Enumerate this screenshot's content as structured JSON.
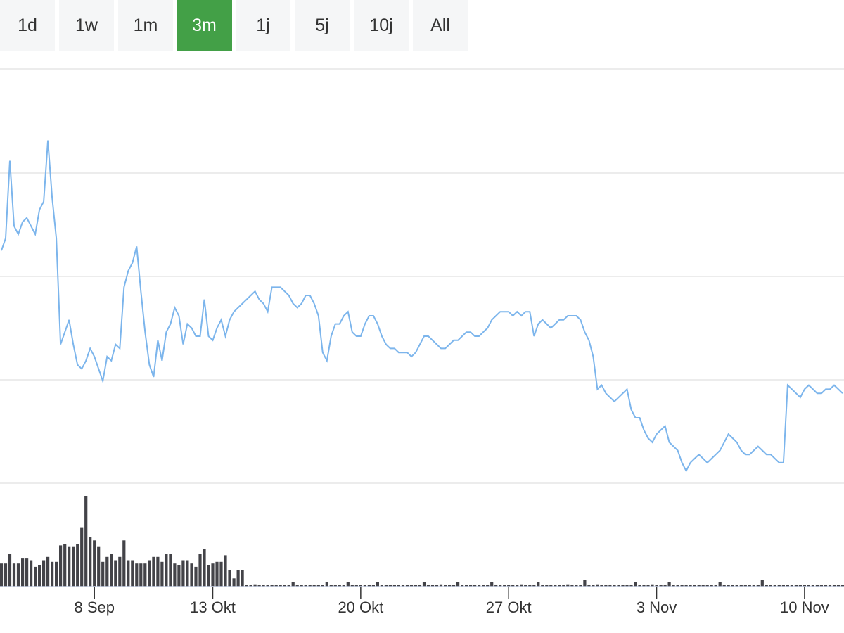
{
  "range_selector": {
    "buttons": [
      {
        "label": "1d",
        "active": false
      },
      {
        "label": "1w",
        "active": false
      },
      {
        "label": "1m",
        "active": false
      },
      {
        "label": "3m",
        "active": true
      },
      {
        "label": "1j",
        "active": false
      },
      {
        "label": "5j",
        "active": false
      },
      {
        "label": "10j",
        "active": false
      },
      {
        "label": "All",
        "active": false
      }
    ],
    "active_color": "#43a047"
  },
  "chart_data": {
    "type": "line",
    "line_color": "#7cb5ec",
    "volume_color": "#434348",
    "grid": true,
    "x_ticks": [
      {
        "label": "8 Sep",
        "index": 22
      },
      {
        "label": "13 Okt",
        "index": 50
      },
      {
        "label": "20 Okt",
        "index": 85
      },
      {
        "label": "27 Okt",
        "index": 120
      },
      {
        "label": "3 Nov",
        "index": 155
      },
      {
        "label": "10 Nov",
        "index": 190
      }
    ],
    "x_count": 200,
    "y_range": [
      0,
      100
    ],
    "price": [
      [
        0,
        61
      ],
      [
        1,
        64
      ],
      [
        2,
        83
      ],
      [
        3,
        67
      ],
      [
        4,
        65
      ],
      [
        5,
        68
      ],
      [
        6,
        69
      ],
      [
        7,
        67
      ],
      [
        8,
        65
      ],
      [
        9,
        71
      ],
      [
        10,
        73
      ],
      [
        11,
        88
      ],
      [
        12,
        74
      ],
      [
        13,
        64
      ],
      [
        14,
        38
      ],
      [
        15,
        41
      ],
      [
        16,
        44
      ],
      [
        17,
        38
      ],
      [
        18,
        33
      ],
      [
        19,
        32
      ],
      [
        20,
        34
      ],
      [
        21,
        37
      ],
      [
        22,
        35
      ],
      [
        23,
        32
      ],
      [
        24,
        29
      ],
      [
        25,
        35
      ],
      [
        26,
        34
      ],
      [
        27,
        38
      ],
      [
        28,
        37
      ],
      [
        29,
        52
      ],
      [
        30,
        56
      ],
      [
        31,
        58
      ],
      [
        32,
        62
      ],
      [
        33,
        51
      ],
      [
        34,
        41
      ],
      [
        35,
        33
      ],
      [
        36,
        30
      ],
      [
        37,
        39
      ],
      [
        38,
        34
      ],
      [
        39,
        41
      ],
      [
        40,
        43
      ],
      [
        41,
        47
      ],
      [
        42,
        45
      ],
      [
        43,
        38
      ],
      [
        44,
        43
      ],
      [
        45,
        42
      ],
      [
        46,
        40
      ],
      [
        47,
        40
      ],
      [
        48,
        49
      ],
      [
        49,
        40
      ],
      [
        50,
        39
      ],
      [
        51,
        42
      ],
      [
        52,
        44
      ],
      [
        53,
        40
      ],
      [
        54,
        44
      ],
      [
        55,
        46
      ],
      [
        56,
        47
      ],
      [
        57,
        48
      ],
      [
        58,
        49
      ],
      [
        59,
        50
      ],
      [
        60,
        51
      ],
      [
        61,
        49
      ],
      [
        62,
        48
      ],
      [
        63,
        46
      ],
      [
        64,
        52
      ],
      [
        65,
        52
      ],
      [
        66,
        52
      ],
      [
        67,
        51
      ],
      [
        68,
        50
      ],
      [
        69,
        48
      ],
      [
        70,
        47
      ],
      [
        71,
        48
      ],
      [
        72,
        50
      ],
      [
        73,
        50
      ],
      [
        74,
        48
      ],
      [
        75,
        45
      ],
      [
        76,
        36
      ],
      [
        77,
        34
      ],
      [
        78,
        40
      ],
      [
        79,
        43
      ],
      [
        80,
        43
      ],
      [
        81,
        45
      ],
      [
        82,
        46
      ],
      [
        83,
        41
      ],
      [
        84,
        40
      ],
      [
        85,
        40
      ],
      [
        86,
        43
      ],
      [
        87,
        45
      ],
      [
        88,
        45
      ],
      [
        89,
        43
      ],
      [
        90,
        40
      ],
      [
        91,
        38
      ],
      [
        92,
        37
      ],
      [
        93,
        37
      ],
      [
        94,
        36
      ],
      [
        95,
        36
      ],
      [
        96,
        36
      ],
      [
        97,
        35
      ],
      [
        98,
        36
      ],
      [
        99,
        38
      ],
      [
        100,
        40
      ],
      [
        101,
        40
      ],
      [
        102,
        39
      ],
      [
        103,
        38
      ],
      [
        104,
        37
      ],
      [
        105,
        37
      ],
      [
        106,
        38
      ],
      [
        107,
        39
      ],
      [
        108,
        39
      ],
      [
        109,
        40
      ],
      [
        110,
        41
      ],
      [
        111,
        41
      ],
      [
        112,
        40
      ],
      [
        113,
        40
      ],
      [
        114,
        41
      ],
      [
        115,
        42
      ],
      [
        116,
        44
      ],
      [
        117,
        45
      ],
      [
        118,
        46
      ],
      [
        119,
        46
      ],
      [
        120,
        46
      ],
      [
        121,
        45
      ],
      [
        122,
        46
      ],
      [
        123,
        45
      ],
      [
        124,
        46
      ],
      [
        125,
        46
      ],
      [
        126,
        40
      ],
      [
        127,
        43
      ],
      [
        128,
        44
      ],
      [
        129,
        43
      ],
      [
        130,
        42
      ],
      [
        131,
        43
      ],
      [
        132,
        44
      ],
      [
        133,
        44
      ],
      [
        134,
        45
      ],
      [
        135,
        45
      ],
      [
        136,
        45
      ],
      [
        137,
        44
      ],
      [
        138,
        41
      ],
      [
        139,
        39
      ],
      [
        140,
        35
      ],
      [
        141,
        27
      ],
      [
        142,
        28
      ],
      [
        143,
        26
      ],
      [
        144,
        25
      ],
      [
        145,
        24
      ],
      [
        146,
        25
      ],
      [
        147,
        26
      ],
      [
        148,
        27
      ],
      [
        149,
        22
      ],
      [
        150,
        20
      ],
      [
        151,
        20
      ],
      [
        152,
        17
      ],
      [
        153,
        15
      ],
      [
        154,
        14
      ],
      [
        155,
        16
      ],
      [
        156,
        17
      ],
      [
        157,
        18
      ],
      [
        158,
        14
      ],
      [
        159,
        13
      ],
      [
        160,
        12
      ],
      [
        161,
        9
      ],
      [
        162,
        7
      ],
      [
        163,
        9
      ],
      [
        164,
        10
      ],
      [
        165,
        11
      ],
      [
        166,
        10
      ],
      [
        167,
        9
      ],
      [
        168,
        10
      ],
      [
        169,
        11
      ],
      [
        170,
        12
      ],
      [
        171,
        14
      ],
      [
        172,
        16
      ],
      [
        173,
        15
      ],
      [
        174,
        14
      ],
      [
        175,
        12
      ],
      [
        176,
        11
      ],
      [
        177,
        11
      ],
      [
        178,
        12
      ],
      [
        179,
        13
      ],
      [
        180,
        12
      ],
      [
        181,
        11
      ],
      [
        182,
        11
      ],
      [
        183,
        10
      ],
      [
        184,
        9
      ],
      [
        185,
        9
      ],
      [
        186,
        28
      ],
      [
        187,
        27
      ],
      [
        188,
        26
      ],
      [
        189,
        25
      ],
      [
        190,
        27
      ],
      [
        191,
        28
      ],
      [
        192,
        27
      ],
      [
        193,
        26
      ],
      [
        194,
        26
      ],
      [
        195,
        27
      ],
      [
        196,
        27
      ],
      [
        197,
        28
      ],
      [
        198,
        27
      ],
      [
        199,
        26
      ]
    ],
    "volume": [
      14,
      14,
      20,
      14,
      14,
      17,
      17,
      16,
      12,
      13,
      16,
      18,
      15,
      15,
      25,
      26,
      24,
      24,
      26,
      36,
      55,
      30,
      28,
      24,
      15,
      18,
      20,
      16,
      18,
      28,
      16,
      16,
      14,
      14,
      14,
      16,
      18,
      18,
      15,
      20,
      20,
      14,
      13,
      16,
      16,
      14,
      12,
      20,
      23,
      13,
      14,
      15,
      15,
      19,
      10,
      5,
      10,
      10,
      0,
      0,
      1,
      0,
      0,
      0,
      0,
      0,
      0,
      0,
      0,
      3,
      0,
      0,
      0,
      0,
      0,
      0,
      0,
      3,
      0,
      0,
      0,
      0,
      3,
      0,
      0,
      0,
      0,
      0,
      0,
      3,
      0,
      0,
      0,
      0,
      0,
      0,
      0,
      0,
      0,
      0,
      3,
      0,
      0,
      0,
      1,
      0,
      0,
      0,
      3,
      0,
      0,
      0,
      0,
      0,
      0,
      0,
      3,
      0,
      0,
      0,
      0,
      0,
      0,
      1,
      0,
      0,
      0,
      3,
      0,
      0,
      0,
      0,
      0,
      0,
      1,
      0,
      0,
      0,
      4,
      0,
      0,
      1,
      0,
      0,
      0,
      0,
      0,
      0,
      0,
      0,
      3,
      0,
      0,
      0,
      1,
      0,
      0,
      0,
      3,
      0,
      0,
      0,
      0,
      0,
      0,
      0,
      0,
      0,
      0,
      0,
      3,
      0,
      0,
      0,
      0,
      0,
      0,
      0,
      0,
      0,
      4,
      0,
      0,
      0,
      0,
      0,
      0,
      0,
      0,
      0,
      0,
      0,
      0,
      0,
      0,
      0,
      0,
      0,
      0,
      0,
      0,
      0,
      0,
      0
    ]
  }
}
